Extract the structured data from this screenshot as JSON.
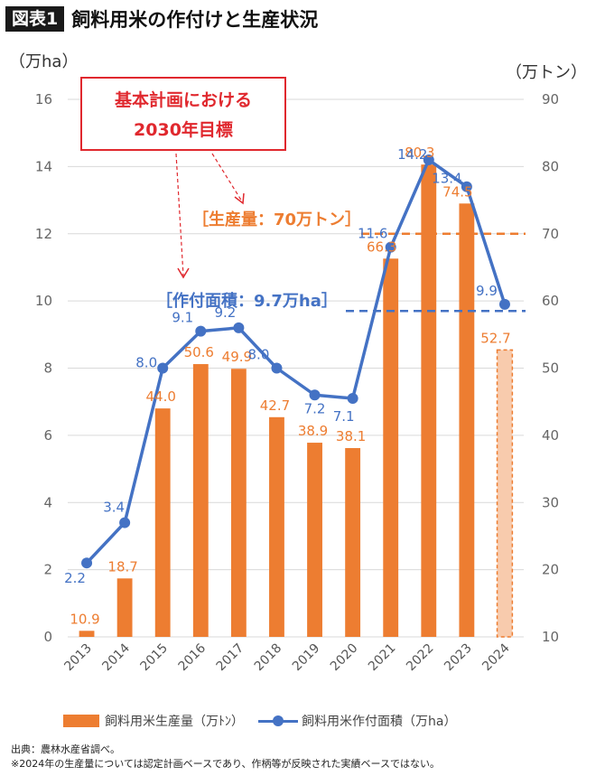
{
  "header": {
    "badge": "図表1",
    "title": "飼料用米の作付けと生産状況"
  },
  "chart_data": {
    "type": "bar",
    "categories": [
      "2013",
      "2014",
      "2015",
      "2016",
      "2017",
      "2018",
      "2019",
      "2020",
      "2021",
      "2022",
      "2023",
      "2024"
    ],
    "left_axis_unit": "（万ha）",
    "right_axis_unit": "（万トン）",
    "left_ylim": [
      0,
      16
    ],
    "left_ticks": [
      "0",
      "2",
      "4",
      "6",
      "8",
      "10",
      "12",
      "14",
      "16"
    ],
    "right_ylim": [
      10,
      90
    ],
    "right_ticks": [
      "10",
      "20",
      "30",
      "40",
      "50",
      "60",
      "70",
      "80",
      "90"
    ],
    "grid": true,
    "legend_position": "bottom",
    "series": [
      {
        "name": "飼料用米生産量（万ﾄﾝ）",
        "type": "bar",
        "axis": "right",
        "color": "#ED7D31",
        "values": [
          10.9,
          18.7,
          44.0,
          50.6,
          49.9,
          42.7,
          38.9,
          38.1,
          66.3,
          80.3,
          74.5,
          52.7
        ],
        "labels": [
          "10.9",
          "18.7",
          "44.0",
          "50.6",
          "49.9",
          "42.7",
          "38.9",
          "38.1",
          "66.3",
          "80.3",
          "74.5",
          "52.7"
        ],
        "note": "2024 is planned basis (dashed, light fill)"
      },
      {
        "name": "飼料用米作付面積（万ha）",
        "type": "line",
        "axis": "left",
        "color": "#4472C4",
        "values": [
          2.2,
          3.4,
          8.0,
          9.1,
          9.2,
          8.0,
          7.2,
          7.1,
          11.6,
          14.2,
          13.4,
          9.9
        ],
        "labels": [
          "2.2",
          "3.4",
          "8.0",
          "9.1",
          "9.2",
          "8.0",
          "7.2",
          "7.1",
          "11.6",
          "14.2",
          "13.4",
          "9.9"
        ]
      }
    ],
    "annotations": {
      "target_box": [
        "基本計画における",
        "2030年目標"
      ],
      "production_target_label": "［生産量：70万トン］",
      "production_target_value": 70,
      "area_target_label": "［作付面積：9.7万ha］",
      "area_target_value": 9.7
    }
  },
  "footer": {
    "source": "出典：農林水産省調べ。",
    "note": "※2024年の生産量については認定計画ベースであり、作柄等が反映された実績ベースではない。"
  },
  "colors": {
    "bar": "#ED7D31",
    "bar_planned": "#F8CBAD",
    "line": "#4472C4",
    "annotation_red": "#E0282E",
    "grid": "#D9D9D9"
  }
}
